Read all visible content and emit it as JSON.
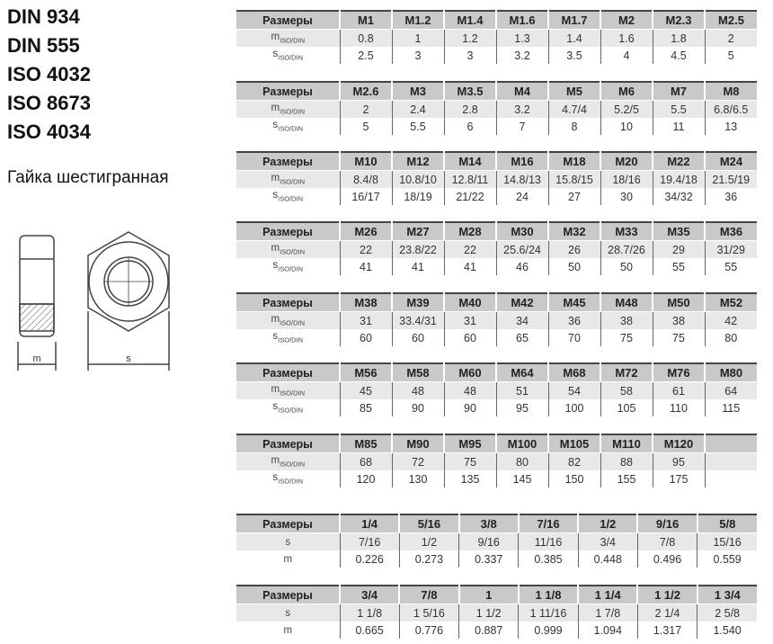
{
  "standards": [
    "DIN 934",
    "DIN 555",
    "ISO 4032",
    "ISO 8673",
    "ISO 4034"
  ],
  "subtitle": "Гайка шестигранная",
  "drawing": {
    "label_m": "m",
    "label_s": "s"
  },
  "header_label": "Размеры",
  "metric_rows": [
    {
      "label": "m",
      "sub": "ISO/DIN"
    },
    {
      "label": "s",
      "sub": "ISO/DIN"
    }
  ],
  "imperial_rows": [
    {
      "label": "s"
    },
    {
      "label": "m"
    }
  ],
  "metric_tables": [
    {
      "sizes": [
        "M1",
        "M1.2",
        "M1.4",
        "M1.6",
        "M1.7",
        "M2",
        "M2.3",
        "M2.5"
      ],
      "m": [
        "0.8",
        "1",
        "1.2",
        "1.3",
        "1.4",
        "1.6",
        "1.8",
        "2"
      ],
      "s": [
        "2.5",
        "3",
        "3",
        "3.2",
        "3.5",
        "4",
        "4.5",
        "5"
      ]
    },
    {
      "sizes": [
        "M2.6",
        "M3",
        "M3.5",
        "M4",
        "M5",
        "M6",
        "M7",
        "M8"
      ],
      "m": [
        "2",
        "2.4",
        "2.8",
        "3.2",
        "4.7/4",
        "5.2/5",
        "5.5",
        "6.8/6.5"
      ],
      "s": [
        "5",
        "5.5",
        "6",
        "7",
        "8",
        "10",
        "11",
        "13"
      ]
    },
    {
      "sizes": [
        "M10",
        "M12",
        "M14",
        "M16",
        "M18",
        "M20",
        "M22",
        "M24"
      ],
      "m": [
        "8.4/8",
        "10.8/10",
        "12.8/11",
        "14.8/13",
        "15.8/15",
        "18/16",
        "19.4/18",
        "21.5/19"
      ],
      "s": [
        "16/17",
        "18/19",
        "21/22",
        "24",
        "27",
        "30",
        "34/32",
        "36"
      ]
    },
    {
      "sizes": [
        "M26",
        "M27",
        "M28",
        "M30",
        "M32",
        "M33",
        "M35",
        "M36"
      ],
      "m": [
        "22",
        "23.8/22",
        "22",
        "25.6/24",
        "26",
        "28.7/26",
        "29",
        "31/29"
      ],
      "s": [
        "41",
        "41",
        "41",
        "46",
        "50",
        "50",
        "55",
        "55"
      ]
    },
    {
      "sizes": [
        "M38",
        "M39",
        "M40",
        "M42",
        "M45",
        "M48",
        "M50",
        "M52"
      ],
      "m": [
        "31",
        "33.4/31",
        "31",
        "34",
        "36",
        "38",
        "38",
        "42"
      ],
      "s": [
        "60",
        "60",
        "60",
        "65",
        "70",
        "75",
        "75",
        "80"
      ]
    },
    {
      "sizes": [
        "M56",
        "M58",
        "M60",
        "M64",
        "M68",
        "M72",
        "M76",
        "M80"
      ],
      "m": [
        "45",
        "48",
        "48",
        "51",
        "54",
        "58",
        "61",
        "64"
      ],
      "s": [
        "85",
        "90",
        "90",
        "95",
        "100",
        "105",
        "110",
        "115"
      ]
    },
    {
      "sizes": [
        "M85",
        "M90",
        "M95",
        "M100",
        "M105",
        "M110",
        "M120",
        ""
      ],
      "m": [
        "68",
        "72",
        "75",
        "80",
        "82",
        "88",
        "95",
        ""
      ],
      "s": [
        "120",
        "130",
        "135",
        "145",
        "150",
        "155",
        "175",
        ""
      ]
    }
  ],
  "imperial_tables": [
    {
      "sizes": [
        "1/4",
        "5/16",
        "3/8",
        "7/16",
        "1/2",
        "9/16",
        "5/8"
      ],
      "s": [
        "7/16",
        "1/2",
        "9/16",
        "11/16",
        "3/4",
        "7/8",
        "15/16"
      ],
      "m": [
        "0.226",
        "0.273",
        "0.337",
        "0.385",
        "0.448",
        "0.496",
        "0.559"
      ]
    },
    {
      "sizes": [
        "3/4",
        "7/8",
        "1",
        "1 1/8",
        "1 1/4",
        "1 1/2",
        "1 3/4"
      ],
      "s": [
        "1 1/8",
        "1 5/16",
        "1 1/2",
        "1 11/16",
        "1 7/8",
        "2 1/4",
        "2 5/8"
      ],
      "m": [
        "0.665",
        "0.776",
        "0.887",
        "0.999",
        "1.094",
        "1.317",
        "1.540"
      ]
    }
  ]
}
